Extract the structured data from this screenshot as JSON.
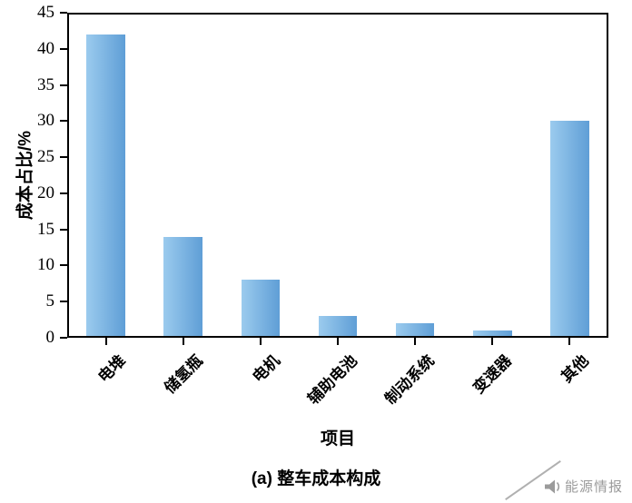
{
  "chart_data": {
    "type": "bar",
    "categories": [
      "电堆",
      "储氢瓶",
      "电机",
      "辅助电池",
      "制动系统",
      "变速器",
      "其他"
    ],
    "values": [
      42,
      14,
      8,
      3,
      2,
      1,
      30
    ],
    "title": "",
    "xlabel": "项目",
    "ylabel": "成本占比/%",
    "ylim": [
      0,
      45
    ],
    "yticks": [
      0,
      5,
      10,
      15,
      20,
      25,
      30,
      35,
      40,
      45
    ],
    "grid": false,
    "legend": "none"
  },
  "caption": "(a) 整车成本构成",
  "watermark": {
    "label": "能源情报"
  },
  "colors": {
    "bar_light": "#9bcbee",
    "bar_dark": "#5f9ed6",
    "axis": "#000000",
    "watermark_gray": "#9b9b9b"
  }
}
